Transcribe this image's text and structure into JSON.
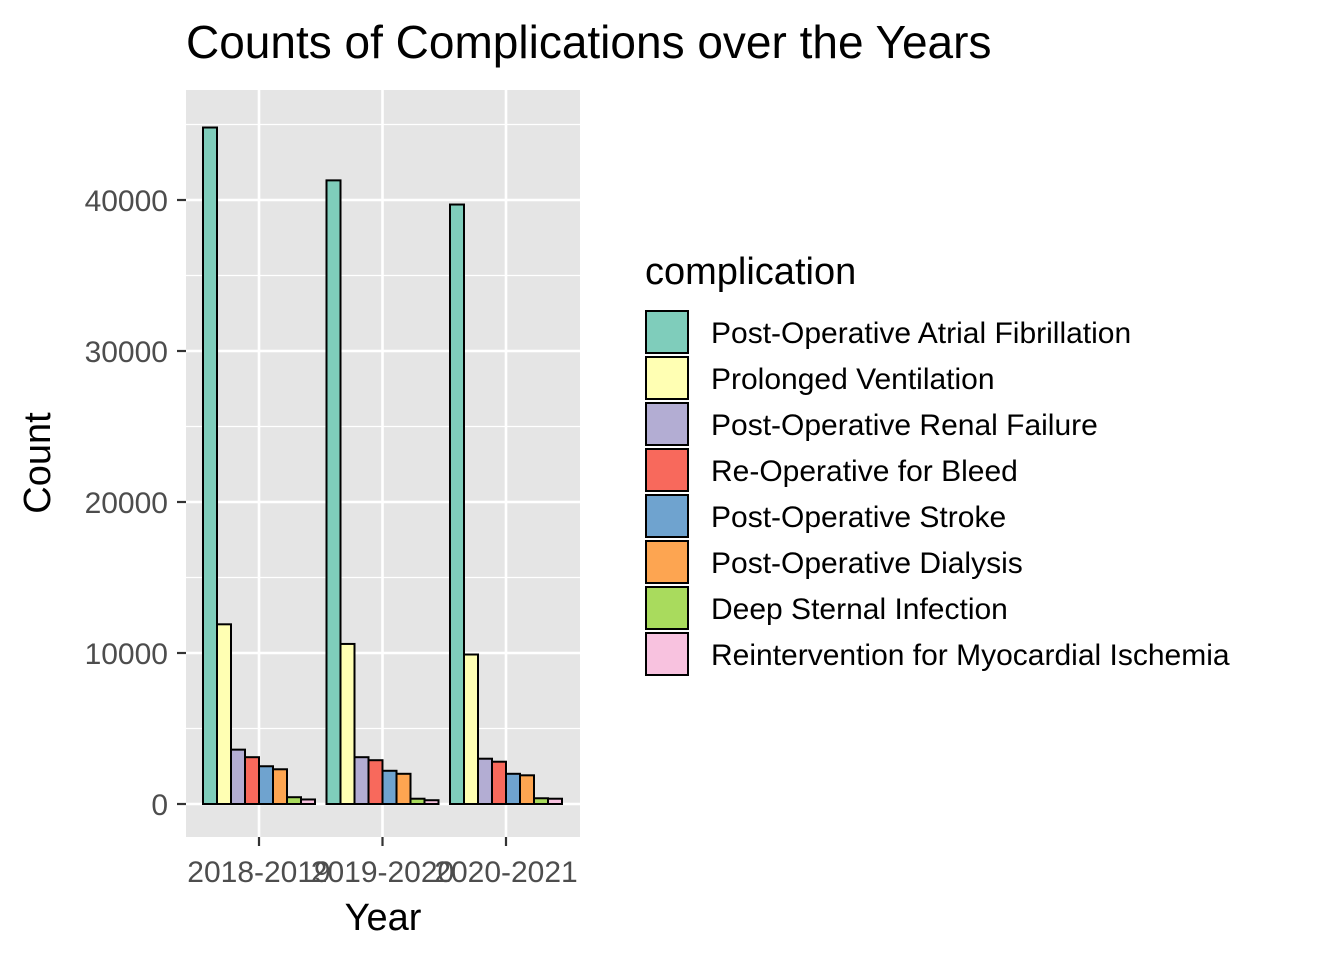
{
  "chart_data": {
    "type": "bar",
    "title": "Counts of Complications over the Years",
    "xlabel": "Year",
    "ylabel": "Count",
    "categories": [
      "2018-2019",
      "2019-2020",
      "2020-2021"
    ],
    "ylim": [
      -2100,
      47000
    ],
    "y_ticks": [
      0,
      10000,
      20000,
      30000,
      40000
    ],
    "y_tick_labels": [
      "0",
      "10000",
      "20000",
      "30000",
      "40000"
    ],
    "grid": true,
    "legend": {
      "title": "complication",
      "position": "right"
    },
    "series": [
      {
        "name": "Post-Operative Atrial Fibrillation",
        "color": "#7FCDBB",
        "values": [
          44800,
          41300,
          39700
        ]
      },
      {
        "name": "Prolonged Ventilation",
        "color": "#FFFFB3",
        "values": [
          11900,
          10600,
          9900
        ]
      },
      {
        "name": "Post-Operative Renal Failure",
        "color": "#B3ADD3",
        "values": [
          3600,
          3100,
          3000
        ]
      },
      {
        "name": "Re-Operative for Bleed",
        "color": "#F8695C",
        "values": [
          3100,
          2900,
          2800
        ]
      },
      {
        "name": "Post-Operative Stroke",
        "color": "#6FA3CF",
        "values": [
          2500,
          2200,
          2000
        ]
      },
      {
        "name": "Post-Operative Dialysis",
        "color": "#FDA551",
        "values": [
          2300,
          2000,
          1900
        ]
      },
      {
        "name": "Deep Sternal Infection",
        "color": "#A9DB5D",
        "values": [
          450,
          350,
          380
        ]
      },
      {
        "name": "Reintervention for Myocardial Ischemia",
        "color": "#F8C2DF",
        "values": [
          300,
          250,
          350
        ]
      }
    ],
    "colors": {
      "panel_background": "#E5E5E5",
      "grid": "#FFFFFF",
      "bar_outline": "#000000"
    }
  }
}
